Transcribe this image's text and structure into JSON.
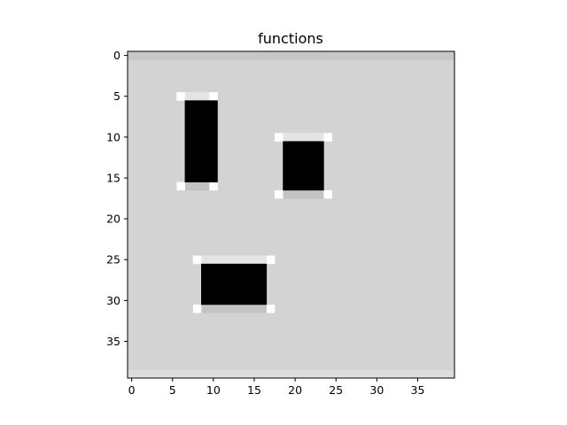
{
  "chart_data": {
    "type": "heatmap",
    "title": "functions",
    "xlabel": "",
    "ylabel": "",
    "grid_size": [
      40,
      40
    ],
    "xlim": [
      -0.5,
      39.5
    ],
    "ylim": [
      39.5,
      -0.5
    ],
    "x_ticks": [
      0,
      5,
      10,
      15,
      20,
      25,
      30,
      35
    ],
    "y_ticks": [
      0,
      5,
      10,
      15,
      20,
      25,
      30,
      35
    ],
    "colormap": "gray",
    "background": {
      "value": 0.82,
      "color": "#d3d3d3"
    },
    "edge_strips": [
      {
        "name": "top-edge",
        "row": 0,
        "col_range": [
          0,
          39
        ],
        "color": "#c7c7c7"
      },
      {
        "name": "bottom-edge",
        "row": 39,
        "col_range": [
          0,
          39
        ],
        "color": "#dcdcdc"
      }
    ],
    "shapes": [
      {
        "name": "rect-1",
        "rows": [
          5,
          16
        ],
        "cols": [
          6,
          10
        ],
        "inner_rows": [
          6,
          15
        ],
        "inner_cols": [
          7,
          10
        ],
        "fill_color": "#000000",
        "top_border_color": "#e4e4e4",
        "bottom_border_color": "#c3c3c3",
        "corner_color": "#ffffff"
      },
      {
        "name": "rect-2",
        "rows": [
          10,
          17
        ],
        "cols": [
          18,
          24
        ],
        "inner_rows": [
          11,
          16
        ],
        "inner_cols": [
          19,
          23
        ],
        "fill_color": "#000000",
        "top_border_color": "#e4e4e4",
        "bottom_border_color": "#c3c3c3",
        "corner_color": "#ffffff"
      },
      {
        "name": "rect-3",
        "rows": [
          25,
          31
        ],
        "cols": [
          8,
          17
        ],
        "inner_rows": [
          26,
          30
        ],
        "inner_cols": [
          9,
          16
        ],
        "fill_color": "#000000",
        "top_border_color": "#e4e4e4",
        "bottom_border_color": "#c3c3c3",
        "corner_color": "#ffffff"
      }
    ]
  }
}
